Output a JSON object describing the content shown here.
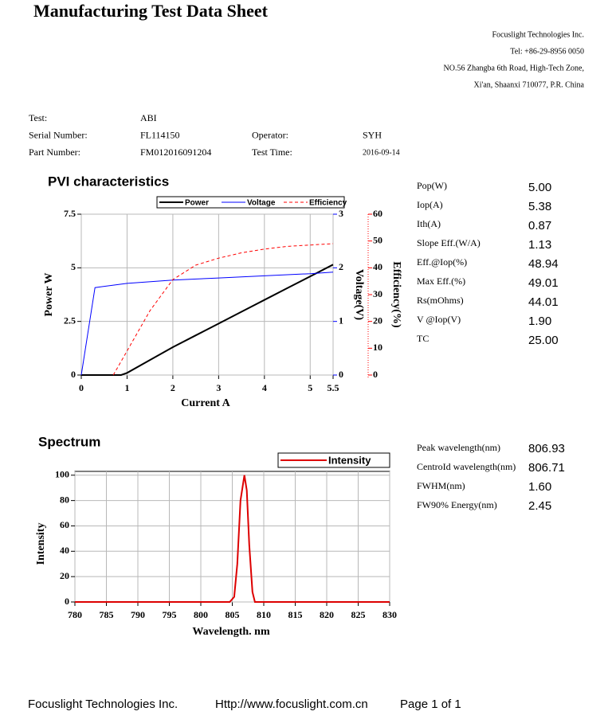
{
  "header": {
    "title": "Manufacturing Test Data Sheet",
    "company": [
      "Focuslight Technologies Inc.",
      "Tel:  +86-29-8956  0050",
      "NO.56 Zhangba 6th Road, High-Tech Zone,",
      "Xi'an, Shaanxi 710077,  P.R.  China"
    ]
  },
  "info": [
    [
      "Test:",
      "ABI",
      null,
      null
    ],
    [
      "Serial Number:",
      "FL114150",
      "Operator:",
      "SYH"
    ],
    [
      "Part Number:",
      "FM012016091204",
      "Test Time:",
      "2016-09-14"
    ]
  ],
  "chart_data": [
    {
      "type": "line",
      "title": "PVI characteristics",
      "x_label": "Current A",
      "y_label": "Power W",
      "y2_label": "Voltage(V)",
      "y3_label": "Efficiency(%)",
      "xlim": [
        0,
        5.5
      ],
      "xticks": [
        0,
        1,
        2,
        3,
        4,
        5,
        5.5
      ],
      "ylim": [
        0,
        7.5
      ],
      "yticks": [
        0,
        2.5,
        5,
        7.5
      ],
      "y2lim": [
        0,
        3
      ],
      "y2ticks": [
        0,
        1,
        2,
        3
      ],
      "y3lim": [
        0,
        60
      ],
      "y3ticks": [
        0,
        10,
        20,
        30,
        40,
        50,
        60
      ],
      "grid": true,
      "legend": "top",
      "series": [
        {
          "name": "Power",
          "color": "#000000",
          "line_style": "solid",
          "width": 2,
          "x": [
            0,
            0.5,
            0.87,
            1,
            1.5,
            2,
            2.5,
            3,
            3.5,
            4,
            4.5,
            5,
            5.5
          ],
          "values": [
            0,
            0,
            0,
            0.1,
            0.7,
            1.3,
            1.85,
            2.4,
            2.95,
            3.5,
            4.05,
            4.6,
            5.15
          ]
        },
        {
          "name": "Voltage",
          "color": "#0000ff",
          "line_style": "solid",
          "width": 1,
          "axis": "y2",
          "x": [
            0,
            0.3,
            1,
            2,
            3,
            4,
            5,
            5.5
          ],
          "values": [
            0,
            1.63,
            1.71,
            1.77,
            1.81,
            1.85,
            1.89,
            1.92
          ]
        },
        {
          "name": "Efficiency",
          "color": "#ff0000",
          "line_style": "dashed",
          "width": 1,
          "axis": "y3",
          "x": [
            0.7,
            1,
            1.5,
            2,
            2.5,
            3,
            3.5,
            4,
            4.5,
            5,
            5.5
          ],
          "values": [
            0,
            9,
            24,
            35.6,
            41,
            43.6,
            45.6,
            47,
            48,
            48.5,
            49
          ]
        }
      ]
    },
    {
      "type": "line",
      "title": "Spectrum",
      "x_label": "Wavelength. nm",
      "y_label": "Intensity",
      "xlim": [
        780,
        830
      ],
      "xticks": [
        780,
        785,
        790,
        795,
        800,
        805,
        810,
        815,
        820,
        825,
        830
      ],
      "ylim": [
        0,
        103
      ],
      "yticks": [
        0,
        20,
        40,
        60,
        80,
        100
      ],
      "grid": true,
      "legend": "top-right",
      "series": [
        {
          "name": "Intensity",
          "color": "#dd0000",
          "line_style": "solid",
          "width": 2,
          "x": [
            780,
            804.6,
            805.3,
            805.8,
            806.3,
            806.93,
            807.3,
            807.7,
            808.2,
            808.6,
            830
          ],
          "values": [
            0,
            0,
            4,
            30,
            80,
            100,
            88,
            45,
            8,
            0,
            0
          ]
        }
      ]
    }
  ],
  "pvi_stats": [
    {
      "label": "Pop(W)",
      "value": "5.00"
    },
    {
      "label": "Iop(A)",
      "value": "5.38"
    },
    {
      "label": "Ith(A)",
      "value": "0.87"
    },
    {
      "label": "Slope Eff.(W/A)",
      "value": "1.13"
    },
    {
      "label": "Eff.@Iop(%)",
      "value": "48.94"
    },
    {
      "label": "Max Eff.(%)",
      "value": "49.01"
    },
    {
      "label": "Rs(mOhms)",
      "value": "44.01"
    },
    {
      "label": "V @Iop(V)",
      "value": "1.90"
    },
    {
      "label": "TC",
      "value": "25.00"
    }
  ],
  "spectrum_stats": [
    {
      "label": "Peak wavelength(nm)",
      "value": "806.93"
    },
    {
      "label": "CentroId wavelength(nm)",
      "value": "806.71"
    },
    {
      "label": "FWHM(nm)",
      "value": "1.60"
    },
    {
      "label": "FW90% Energy(nm)",
      "value": "2.45"
    }
  ],
  "footer": {
    "company": "Focuslight Technologies Inc.",
    "url": "Http://www.focuslight.com.cn",
    "page": "Page 1 of 1"
  }
}
